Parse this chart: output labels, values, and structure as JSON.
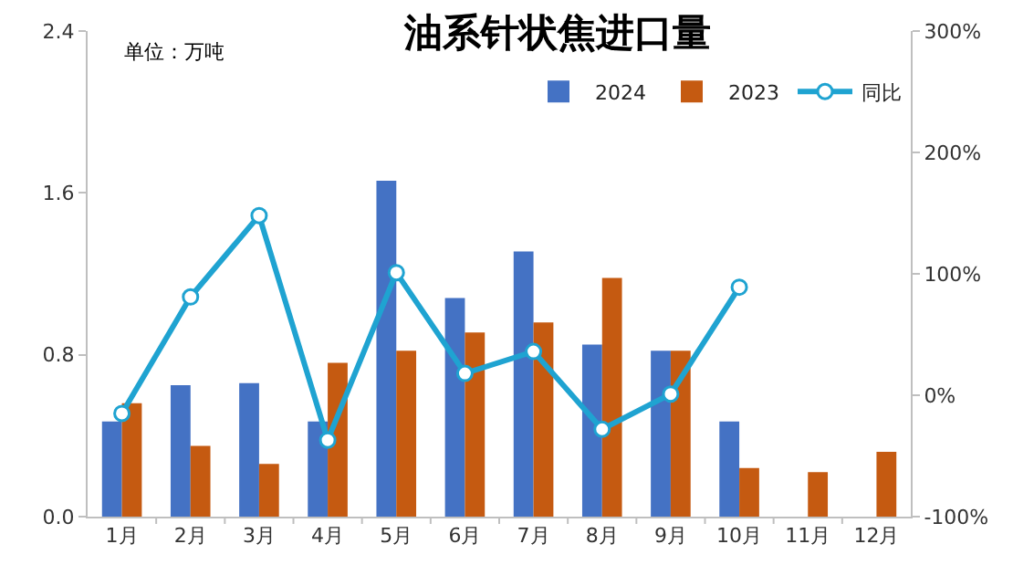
{
  "chart_data": {
    "type": "bar",
    "title": "油系针状焦进口量",
    "annotations": [
      "单位：万吨"
    ],
    "categories": [
      "1月",
      "2月",
      "3月",
      "4月",
      "5月",
      "6月",
      "7月",
      "8月",
      "9月",
      "10月",
      "11月",
      "12月"
    ],
    "series": [
      {
        "name": "2024",
        "color": "#4472c4",
        "values": [
          0.47,
          0.65,
          0.66,
          0.47,
          1.66,
          1.08,
          1.31,
          0.85,
          0.82,
          0.47,
          null,
          null
        ]
      },
      {
        "name": "2023",
        "color": "#c55a11",
        "values": [
          0.56,
          0.35,
          0.26,
          0.76,
          0.82,
          0.91,
          0.96,
          1.18,
          0.82,
          0.24,
          0.22,
          0.32
        ]
      },
      {
        "name": "同比",
        "type": "line",
        "axis": "y2",
        "color": "#1fa3d1",
        "values": [
          -15,
          81,
          148,
          -37,
          101,
          18,
          36,
          -28,
          1,
          89,
          null,
          null
        ]
      }
    ],
    "ylim": [
      0,
      2.4
    ],
    "yticks": [
      {
        "value": 0,
        "label": "0.0"
      },
      {
        "value": 0.8,
        "label": "0.8"
      },
      {
        "value": 1.6,
        "label": "1.6"
      },
      {
        "value": 2.4,
        "label": "2.4"
      }
    ],
    "y2lim": [
      -100,
      300
    ],
    "y2ticks": [
      {
        "value": -100,
        "label": "-100%"
      },
      {
        "value": 0,
        "label": "0%"
      },
      {
        "value": 100,
        "label": "100%"
      },
      {
        "value": 200,
        "label": "200%"
      },
      {
        "value": 300,
        "label": "300%"
      }
    ],
    "legend": "top right",
    "marker": "circle",
    "line_style": "solid"
  }
}
